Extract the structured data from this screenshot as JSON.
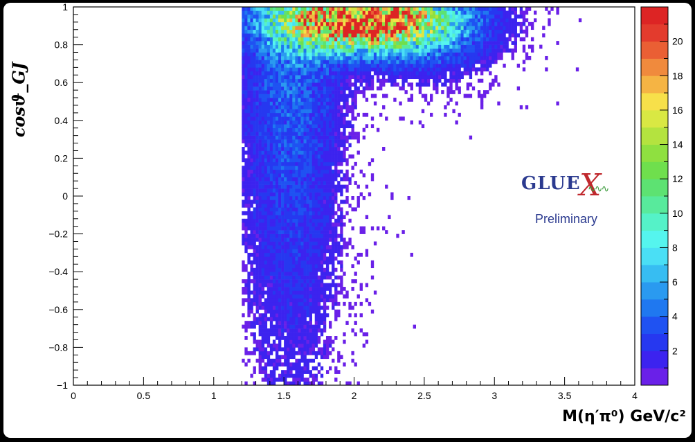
{
  "chart_data": {
    "type": "heatmap",
    "title": "",
    "xlabel": "M(η′π⁰) GeV/c²",
    "ylabel": "cosϑ_GJ",
    "xlim": [
      0,
      4
    ],
    "ylim": [
      -1,
      1
    ],
    "zlim": [
      0,
      22
    ],
    "x_ticks": [
      "0",
      "0.5",
      "1",
      "1.5",
      "2",
      "2.5",
      "3",
      "3.5",
      "4"
    ],
    "y_ticks": [
      "−1",
      "−0.8",
      "−0.6",
      "−0.4",
      "−0.2",
      "0",
      "0.2",
      "0.4",
      "0.6",
      "0.8",
      "1"
    ],
    "z_ticks": [
      "2",
      "4",
      "6",
      "8",
      "10",
      "12",
      "14",
      "16",
      "18",
      "20"
    ],
    "bins": {
      "x_start": 1.2,
      "x_end": 4.0,
      "x_count": 140,
      "y_count": 100
    },
    "data_x_range": [
      1.2,
      3.7
    ],
    "peak": {
      "x": 2.1,
      "y": 0.9,
      "z": 21
    },
    "features": [
      "Threshold at M ≈ 1.2 GeV/c² (no entries below)",
      "Maximum density near M ≈ 1.8–2.3, cosϑ ≈ 0.8–1.0",
      "Band of high cosϑ extending to M ≈ 3.0",
      "Broad low-intensity spread over all cosϑ for M 1.2–2.0"
    ],
    "colormap": [
      "#6a20e8",
      "#3c23ef",
      "#2638f0",
      "#1f52f2",
      "#1f78f0",
      "#2a9af0",
      "#37bdf2",
      "#4adff5",
      "#55f5ee",
      "#55f2c8",
      "#58ea9c",
      "#5de272",
      "#6fdf4d",
      "#8fe040",
      "#b4e33f",
      "#d9e843",
      "#f7e04a",
      "#f5b444",
      "#f08a3d",
      "#ea5f34",
      "#e33b2d",
      "#dd2424"
    ],
    "logo": {
      "word": "GLUE",
      "x": "X",
      "sub": "Preliminary"
    }
  }
}
